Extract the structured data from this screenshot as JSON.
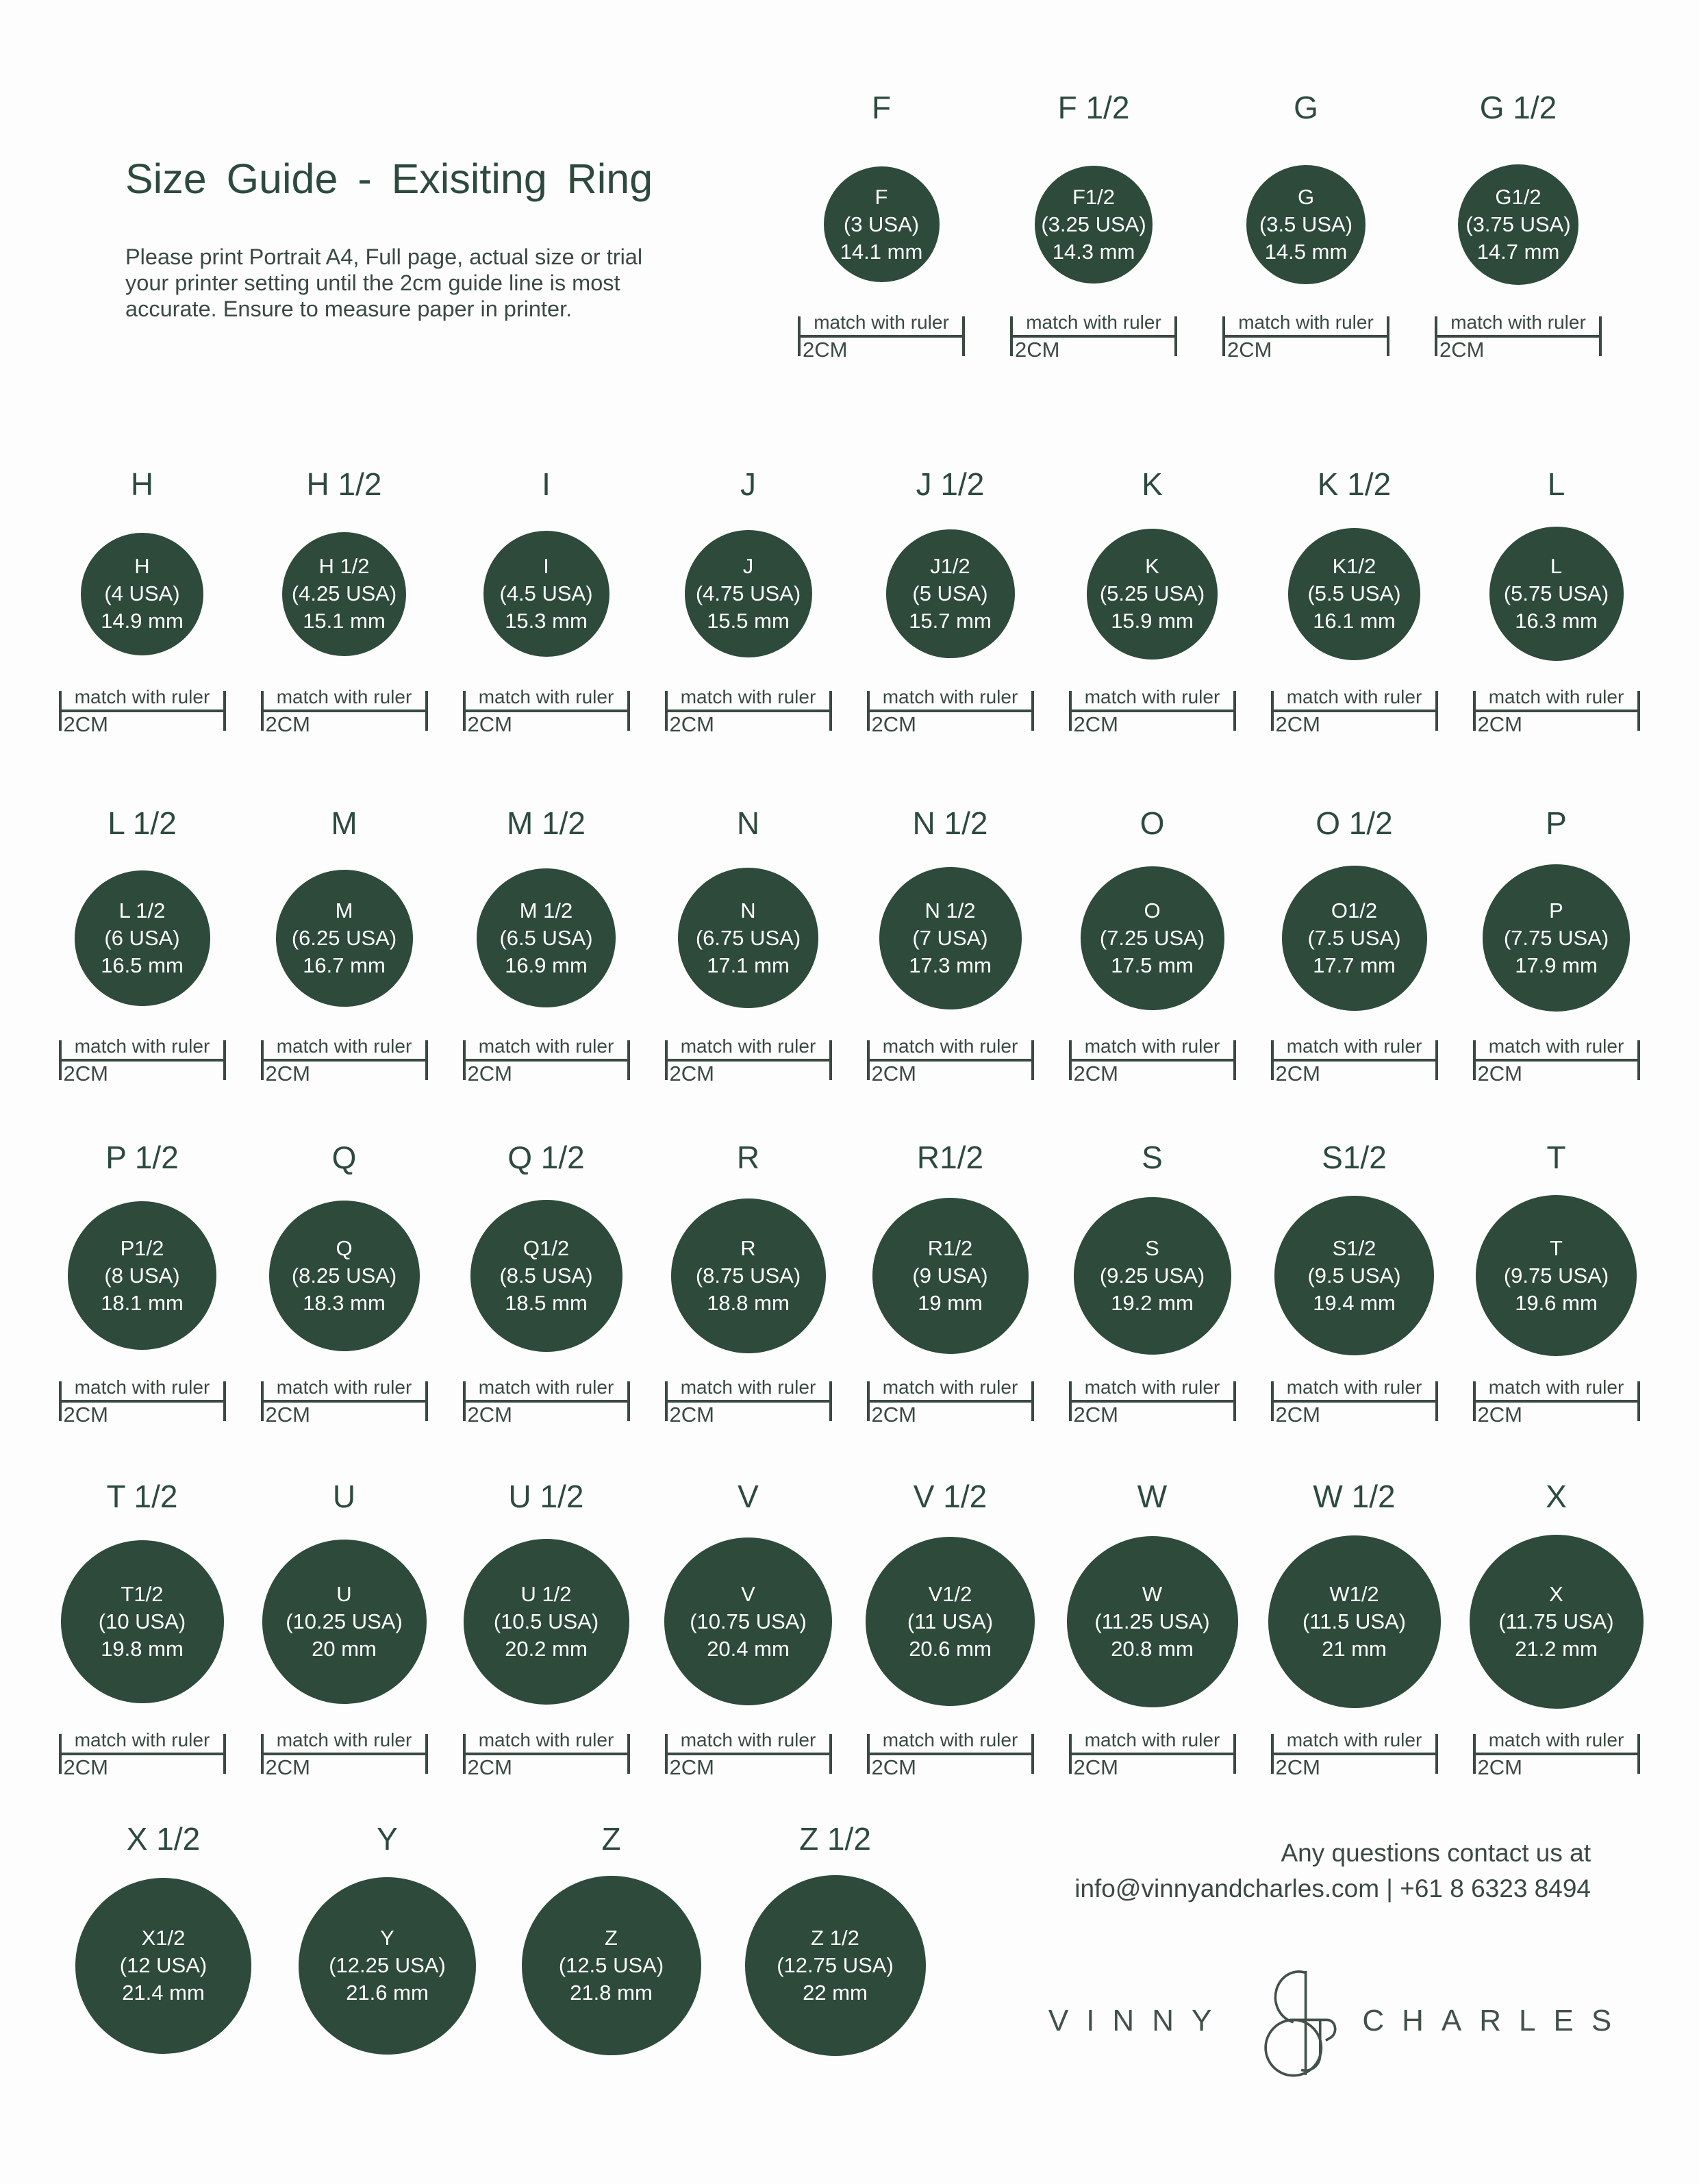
{
  "page": {
    "title": "Size Guide - Exisiting Ring",
    "instructions": "Please print Portrait A4, Full page, actual size or trial your printer setting until the 2cm guide line is most accurate. Ensure to measure paper in printer."
  },
  "ruler": {
    "top_label": "match with ruler",
    "bottom_label": "2CM"
  },
  "contact": {
    "line1": "Any questions contact us at",
    "email": "info@vinnyandcharles.com",
    "separator": " | ",
    "phone": "+61 8 6323 8494"
  },
  "logo": {
    "left_word": "VINNY",
    "ampersand": "&",
    "right_word": "CHARLES"
  },
  "colors": {
    "heading_text": "#2d4a3e",
    "body_text": "#3a4a42",
    "circle_fill": "#2d4a3b",
    "circle_text": "#ffffff",
    "logo_text": "#42524a",
    "background": "#fcfdfc"
  },
  "sizes_rows": [
    {
      "ruler": true,
      "items": [
        {
          "heading": "F",
          "label": "F",
          "usa": "(3 USA)",
          "mm_label": "14.1 mm",
          "mm": 14.1
        },
        {
          "heading": "F 1/2",
          "label": "F1/2",
          "usa": "(3.25 USA)",
          "mm_label": "14.3 mm",
          "mm": 14.3
        },
        {
          "heading": "G",
          "label": "G",
          "usa": "(3.5 USA)",
          "mm_label": "14.5 mm",
          "mm": 14.5
        },
        {
          "heading": "G 1/2",
          "label": "G1/2",
          "usa": "(3.75 USA)",
          "mm_label": "14.7 mm",
          "mm": 14.7
        }
      ]
    },
    {
      "ruler": true,
      "items": [
        {
          "heading": "H",
          "label": "H",
          "usa": "(4 USA)",
          "mm_label": "14.9 mm",
          "mm": 14.9
        },
        {
          "heading": "H 1/2",
          "label": "H 1/2",
          "usa": "(4.25 USA)",
          "mm_label": "15.1 mm",
          "mm": 15.1
        },
        {
          "heading": "I",
          "label": "I",
          "usa": "(4.5 USA)",
          "mm_label": "15.3 mm",
          "mm": 15.3
        },
        {
          "heading": "J",
          "label": "J",
          "usa": "(4.75 USA)",
          "mm_label": "15.5 mm",
          "mm": 15.5
        },
        {
          "heading": "J 1/2",
          "label": "J1/2",
          "usa": "(5 USA)",
          "mm_label": "15.7 mm",
          "mm": 15.7
        },
        {
          "heading": "K",
          "label": "K",
          "usa": "(5.25 USA)",
          "mm_label": "15.9 mm",
          "mm": 15.9
        },
        {
          "heading": "K 1/2",
          "label": "K1/2",
          "usa": "(5.5 USA)",
          "mm_label": "16.1 mm",
          "mm": 16.1
        },
        {
          "heading": "L",
          "label": "L",
          "usa": "(5.75 USA)",
          "mm_label": "16.3 mm",
          "mm": 16.3
        }
      ]
    },
    {
      "ruler": true,
      "items": [
        {
          "heading": "L 1/2",
          "label": "L 1/2",
          "usa": "(6 USA)",
          "mm_label": "16.5 mm",
          "mm": 16.5
        },
        {
          "heading": "M",
          "label": "M",
          "usa": "(6.25 USA)",
          "mm_label": "16.7 mm",
          "mm": 16.7
        },
        {
          "heading": "M 1/2",
          "label": "M 1/2",
          "usa": "(6.5 USA)",
          "mm_label": "16.9 mm",
          "mm": 16.9
        },
        {
          "heading": "N",
          "label": "N",
          "usa": "(6.75 USA)",
          "mm_label": "17.1 mm",
          "mm": 17.1
        },
        {
          "heading": "N 1/2",
          "label": "N 1/2",
          "usa": "(7 USA)",
          "mm_label": "17.3 mm",
          "mm": 17.3
        },
        {
          "heading": "O",
          "label": "O",
          "usa": "(7.25 USA)",
          "mm_label": "17.5 mm",
          "mm": 17.5
        },
        {
          "heading": "O 1/2",
          "label": "O1/2",
          "usa": "(7.5 USA)",
          "mm_label": "17.7 mm",
          "mm": 17.7
        },
        {
          "heading": "P",
          "label": "P",
          "usa": "(7.75 USA)",
          "mm_label": "17.9 mm",
          "mm": 17.9
        }
      ]
    },
    {
      "ruler": true,
      "items": [
        {
          "heading": "P 1/2",
          "label": "P1/2",
          "usa": "(8 USA)",
          "mm_label": "18.1 mm",
          "mm": 18.1
        },
        {
          "heading": "Q",
          "label": "Q",
          "usa": "(8.25 USA)",
          "mm_label": "18.3 mm",
          "mm": 18.3
        },
        {
          "heading": "Q 1/2",
          "label": "Q1/2",
          "usa": "(8.5 USA)",
          "mm_label": "18.5 mm",
          "mm": 18.5
        },
        {
          "heading": "R",
          "label": "R",
          "usa": "(8.75 USA)",
          "mm_label": "18.8 mm",
          "mm": 18.8
        },
        {
          "heading": "R1/2",
          "label": "R1/2",
          "usa": "(9 USA)",
          "mm_label": "19 mm",
          "mm": 19
        },
        {
          "heading": "S",
          "label": "S",
          "usa": "(9.25 USA)",
          "mm_label": "19.2 mm",
          "mm": 19.2
        },
        {
          "heading": "S1/2",
          "label": "S1/2",
          "usa": "(9.5 USA)",
          "mm_label": "19.4 mm",
          "mm": 19.4
        },
        {
          "heading": "T",
          "label": "T",
          "usa": "(9.75 USA)",
          "mm_label": "19.6 mm",
          "mm": 19.6
        }
      ]
    },
    {
      "ruler": true,
      "items": [
        {
          "heading": "T 1/2",
          "label": "T1/2",
          "usa": "(10 USA)",
          "mm_label": "19.8 mm",
          "mm": 19.8
        },
        {
          "heading": "U",
          "label": "U",
          "usa": "(10.25 USA)",
          "mm_label": "20 mm",
          "mm": 20
        },
        {
          "heading": "U 1/2",
          "label": "U 1/2",
          "usa": "(10.5 USA)",
          "mm_label": "20.2 mm",
          "mm": 20.2
        },
        {
          "heading": "V",
          "label": "V",
          "usa": "(10.75 USA)",
          "mm_label": "20.4 mm",
          "mm": 20.4
        },
        {
          "heading": "V 1/2",
          "label": "V1/2",
          "usa": "(11 USA)",
          "mm_label": "20.6 mm",
          "mm": 20.6
        },
        {
          "heading": "W",
          "label": "W",
          "usa": "(11.25 USA)",
          "mm_label": "20.8 mm",
          "mm": 20.8
        },
        {
          "heading": "W 1/2",
          "label": "W1/2",
          "usa": "(11.5 USA)",
          "mm_label": "21 mm",
          "mm": 21
        },
        {
          "heading": "X",
          "label": "X",
          "usa": "(11.75 USA)",
          "mm_label": "21.2 mm",
          "mm": 21.2
        }
      ]
    },
    {
      "ruler": false,
      "items": [
        {
          "heading": "X 1/2",
          "label": "X1/2",
          "usa": "(12 USA)",
          "mm_label": "21.4 mm",
          "mm": 21.4
        },
        {
          "heading": "Y",
          "label": "Y",
          "usa": "(12.25 USA)",
          "mm_label": "21.6 mm",
          "mm": 21.6
        },
        {
          "heading": "Z",
          "label": "Z",
          "usa": "(12.5 USA)",
          "mm_label": "21.8 mm",
          "mm": 21.8
        },
        {
          "heading": "Z 1/2",
          "label": "Z 1/2",
          "usa": "(12.75 USA)",
          "mm_label": "22 mm",
          "mm": 22
        }
      ]
    }
  ]
}
